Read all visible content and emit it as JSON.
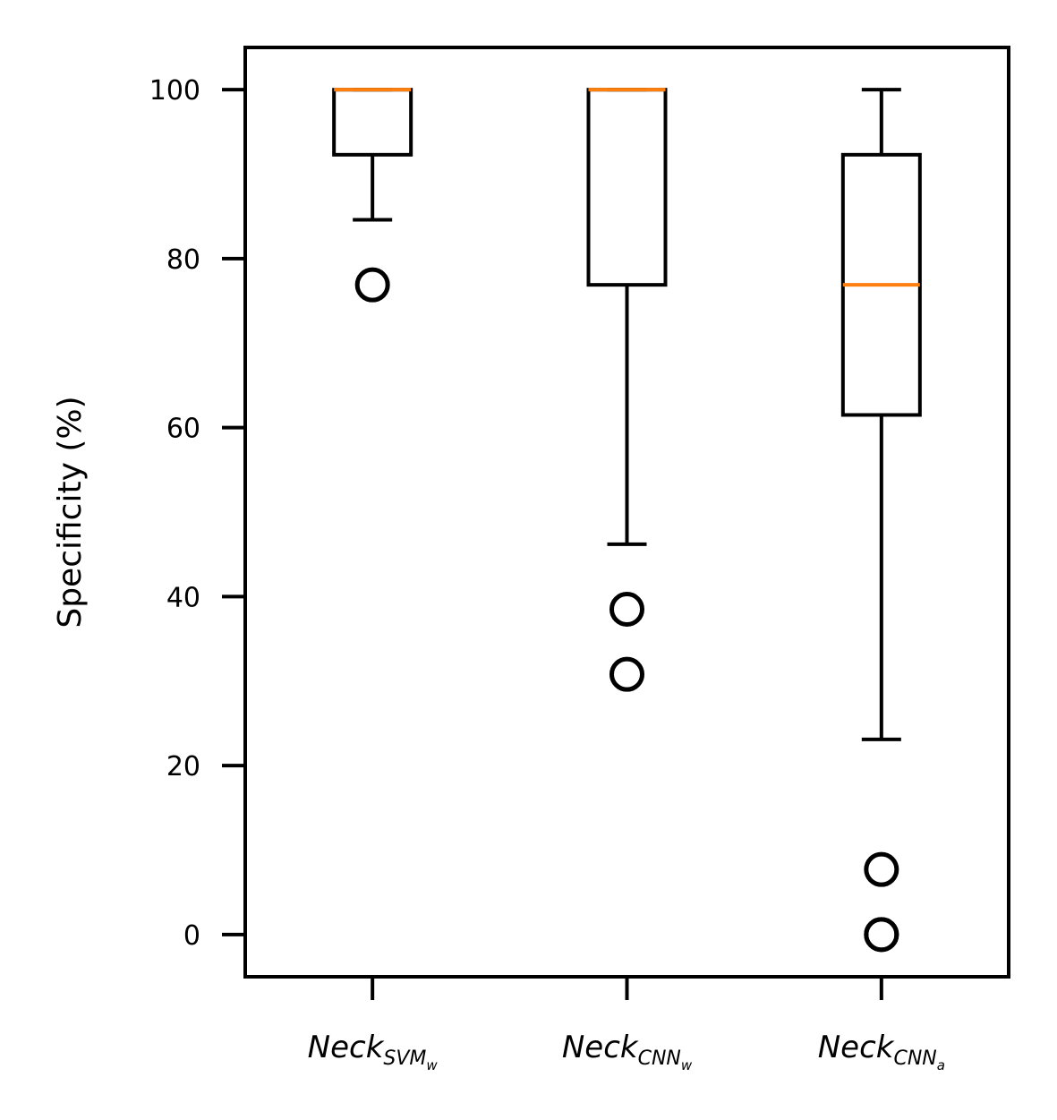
{
  "chart_data": {
    "type": "box",
    "ylabel": "Specificity (%)",
    "ylim": [
      -5,
      105
    ],
    "yticks": [
      0,
      20,
      40,
      60,
      80,
      100
    ],
    "grid": false,
    "colors": {
      "box": "#000000",
      "median": "#ff7f0e",
      "flier": "#000000"
    },
    "categories": [
      {
        "label": "Neck",
        "sub": "SVM",
        "subsub": "w"
      },
      {
        "label": "Neck",
        "sub": "CNN",
        "subsub": "w"
      },
      {
        "label": "Neck",
        "sub": "CNN",
        "subsub": "a"
      }
    ],
    "boxes": [
      {
        "whisker_low": 84.6,
        "q1": 92.3,
        "median": 100,
        "q3": 100,
        "whisker_high": 100,
        "fliers": [
          76.9
        ]
      },
      {
        "whisker_low": 46.2,
        "q1": 76.9,
        "median": 100,
        "q3": 100,
        "whisker_high": 100,
        "fliers": [
          38.5,
          30.8
        ]
      },
      {
        "whisker_low": 23.1,
        "q1": 61.5,
        "median": 76.9,
        "q3": 92.3,
        "whisker_high": 100,
        "fliers": [
          7.7,
          0,
          0
        ]
      }
    ]
  }
}
